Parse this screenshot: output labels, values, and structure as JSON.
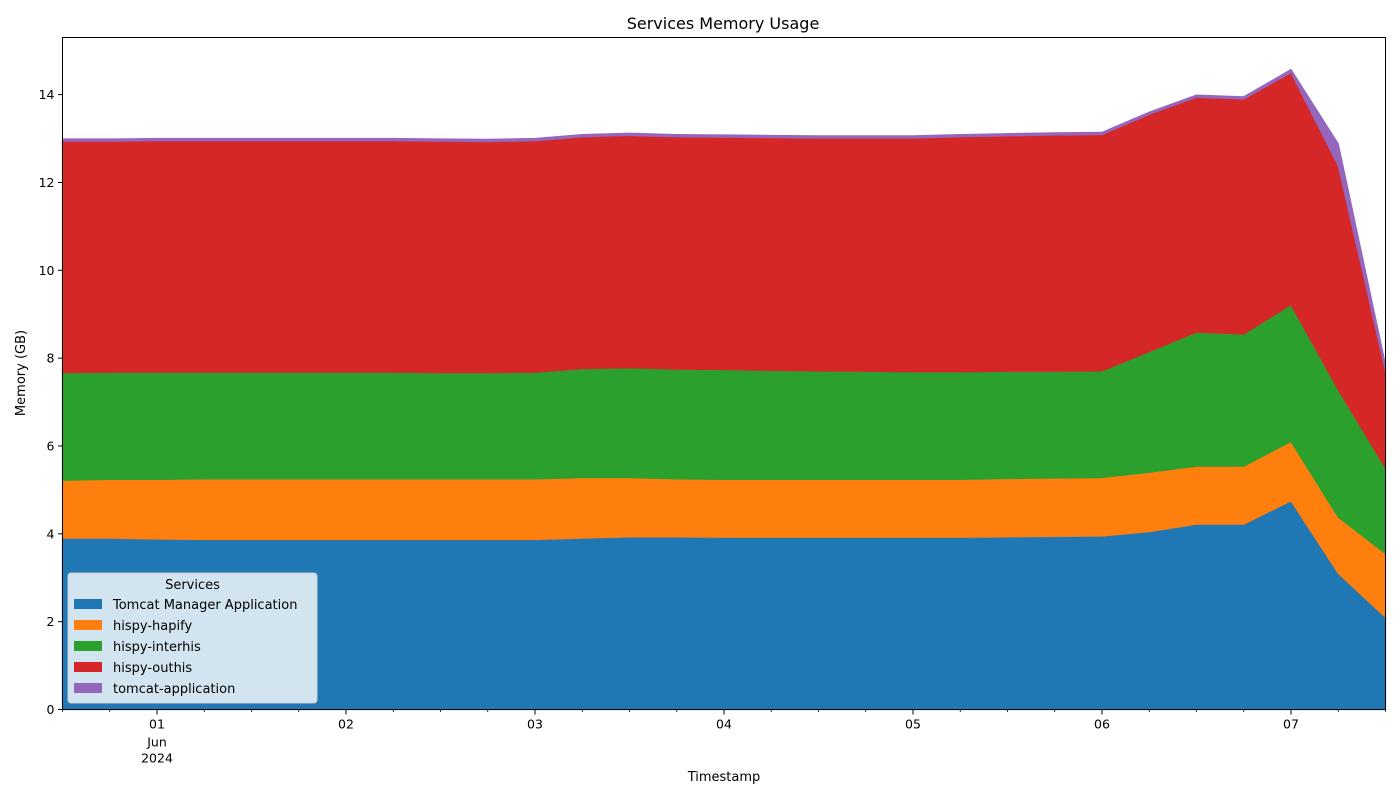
{
  "chart_data": {
    "type": "area",
    "stacked": true,
    "title": "Services Memory Usage",
    "xlabel": "Timestamp",
    "ylabel": "Memory (GB)",
    "ylim": [
      0,
      15.3
    ],
    "xlim": [
      "2024-05-31 12:00",
      "2024-06-07 12:00"
    ],
    "y_ticks": [
      "0",
      "2",
      "4",
      "6",
      "8",
      "10",
      "12",
      "14"
    ],
    "x_ticks": [
      {
        "at": "2024-06-01 00:00",
        "label": "01",
        "sublabels": [
          "Jun",
          "2024"
        ]
      },
      {
        "at": "2024-06-02 00:00",
        "label": "02"
      },
      {
        "at": "2024-06-03 00:00",
        "label": "03"
      },
      {
        "at": "2024-06-04 00:00",
        "label": "04"
      },
      {
        "at": "2024-06-05 00:00",
        "label": "05"
      },
      {
        "at": "2024-06-06 00:00",
        "label": "06"
      },
      {
        "at": "2024-06-07 00:00",
        "label": "07"
      }
    ],
    "x": [
      "2024-05-31 12:00",
      "2024-05-31 18:00",
      "2024-06-01 00:00",
      "2024-06-01 06:00",
      "2024-06-01 12:00",
      "2024-06-01 18:00",
      "2024-06-02 00:00",
      "2024-06-02 06:00",
      "2024-06-02 12:00",
      "2024-06-02 18:00",
      "2024-06-03 00:00",
      "2024-06-03 06:00",
      "2024-06-03 12:00",
      "2024-06-03 18:00",
      "2024-06-04 00:00",
      "2024-06-04 06:00",
      "2024-06-04 12:00",
      "2024-06-04 18:00",
      "2024-06-05 00:00",
      "2024-06-05 06:00",
      "2024-06-05 12:00",
      "2024-06-05 18:00",
      "2024-06-06 00:00",
      "2024-06-06 06:00",
      "2024-06-06 12:00",
      "2024-06-06 18:00",
      "2024-06-07 00:00",
      "2024-06-07 06:00",
      "2024-06-07 12:00"
    ],
    "legend": {
      "title": "Services",
      "position": "lower-left"
    },
    "series": [
      {
        "name": "Tomcat Manager Application",
        "color": "#1f77b4",
        "values": [
          3.9,
          3.9,
          3.88,
          3.87,
          3.87,
          3.87,
          3.87,
          3.87,
          3.87,
          3.87,
          3.87,
          3.9,
          3.93,
          3.93,
          3.92,
          3.92,
          3.92,
          3.92,
          3.92,
          3.92,
          3.93,
          3.94,
          3.95,
          4.05,
          4.22,
          4.22,
          4.75,
          3.1,
          2.1
        ]
      },
      {
        "name": "hispy-hapify",
        "color": "#ff7f0e",
        "values": [
          1.32,
          1.34,
          1.36,
          1.38,
          1.38,
          1.38,
          1.38,
          1.38,
          1.38,
          1.38,
          1.38,
          1.38,
          1.35,
          1.32,
          1.32,
          1.32,
          1.32,
          1.32,
          1.32,
          1.32,
          1.33,
          1.33,
          1.33,
          1.35,
          1.32,
          1.32,
          1.35,
          1.28,
          1.45
        ]
      },
      {
        "name": "hispy-interhis",
        "color": "#2ca02c",
        "values": [
          2.45,
          2.44,
          2.44,
          2.43,
          2.43,
          2.43,
          2.43,
          2.43,
          2.42,
          2.42,
          2.43,
          2.48,
          2.5,
          2.5,
          2.5,
          2.48,
          2.47,
          2.46,
          2.45,
          2.45,
          2.44,
          2.43,
          2.43,
          2.75,
          3.05,
          3.01,
          3.12,
          2.9,
          1.95
        ]
      },
      {
        "name": "hispy-outhis",
        "color": "#d62728",
        "values": [
          5.27,
          5.26,
          5.27,
          5.27,
          5.27,
          5.27,
          5.27,
          5.27,
          5.27,
          5.26,
          5.27,
          5.28,
          5.29,
          5.29,
          5.29,
          5.3,
          5.3,
          5.31,
          5.32,
          5.35,
          5.36,
          5.38,
          5.38,
          5.4,
          5.35,
          5.35,
          5.28,
          5.1,
          2.2
        ]
      },
      {
        "name": "tomcat-application",
        "color": "#9467bd",
        "values": [
          0.05,
          0.05,
          0.05,
          0.05,
          0.05,
          0.05,
          0.05,
          0.05,
          0.05,
          0.05,
          0.05,
          0.05,
          0.05,
          0.05,
          0.05,
          0.05,
          0.05,
          0.05,
          0.05,
          0.05,
          0.05,
          0.05,
          0.05,
          0.05,
          0.05,
          0.05,
          0.07,
          0.5,
          0.15
        ]
      }
    ]
  }
}
